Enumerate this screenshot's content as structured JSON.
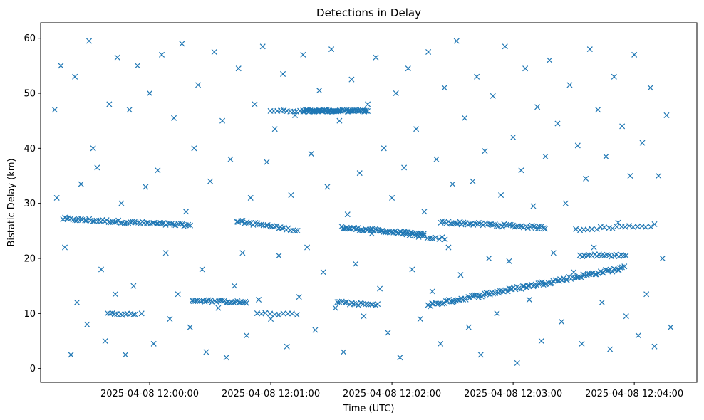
{
  "chart_data": {
    "type": "scatter",
    "title": "Detections in Delay",
    "xlabel": "Time (UTC)",
    "ylabel": "Bistatic Delay (km)",
    "x_unit": "time (UTC) on 2025-04-08",
    "x_ticks": [
      {
        "time": "11:59:57",
        "label": "2025-04-08 12:00:00"
      },
      {
        "time": "12:00:57",
        "label": "2025-04-08 12:01:00"
      },
      {
        "time": "12:01:57",
        "label": "2025-04-08 12:02:00"
      },
      {
        "time": "12:02:57",
        "label": "2025-04-08 12:03:00"
      },
      {
        "time": "12:03:57",
        "label": "2025-04-08 12:04:00"
      }
    ],
    "xlim": [
      "11:59:03",
      "12:04:28"
    ],
    "y_ticks": [
      0,
      10,
      20,
      30,
      40,
      50,
      60
    ],
    "ylim": [
      -2.5,
      62.8
    ],
    "marker": "x",
    "color": "#1f77b4",
    "grid": false,
    "series": [
      {
        "points": [
          [
            "11:59:10",
            47.0
          ],
          [
            "11:59:11",
            31.0
          ],
          [
            "11:59:13",
            55.0
          ],
          [
            "11:59:15",
            22.0
          ],
          [
            "11:59:18",
            2.5
          ],
          [
            "11:59:20",
            53.0
          ],
          [
            "11:59:21",
            12.0
          ],
          [
            "11:59:23",
            33.5
          ],
          [
            "11:59:26",
            8.0
          ],
          [
            "11:59:27",
            59.5
          ],
          [
            "11:59:29",
            40.0
          ],
          [
            "11:59:31",
            36.5
          ],
          [
            "11:59:33",
            18.0
          ],
          [
            "11:59:35",
            5.0
          ],
          [
            "11:59:37",
            48.0
          ],
          [
            "11:59:40",
            13.5
          ],
          [
            "11:59:41",
            56.5
          ],
          [
            "11:59:43",
            30.0
          ],
          [
            "11:59:45",
            2.5
          ],
          [
            "11:59:47",
            47.0
          ],
          [
            "11:59:49",
            15.0
          ],
          [
            "11:59:51",
            55.0
          ],
          [
            "11:59:53",
            10.0
          ],
          [
            "11:59:55",
            33.0
          ],
          [
            "11:59:57",
            50.0
          ],
          [
            "11:59:59",
            4.5
          ],
          [
            "12:00:01",
            36.0
          ],
          [
            "12:00:03",
            57.0
          ],
          [
            "12:00:05",
            21.0
          ],
          [
            "12:00:07",
            9.0
          ],
          [
            "12:00:09",
            45.5
          ],
          [
            "12:00:11",
            13.5
          ],
          [
            "12:00:13",
            59.0
          ],
          [
            "12:00:15",
            28.5
          ],
          [
            "12:00:17",
            7.5
          ],
          [
            "12:00:19",
            40.0
          ],
          [
            "12:00:21",
            51.5
          ],
          [
            "12:00:23",
            18.0
          ],
          [
            "12:00:25",
            3.0
          ],
          [
            "12:00:27",
            34.0
          ],
          [
            "12:00:29",
            57.5
          ],
          [
            "12:00:31",
            11.0
          ],
          [
            "12:00:33",
            45.0
          ],
          [
            "12:00:35",
            2.0
          ],
          [
            "12:00:37",
            38.0
          ],
          [
            "12:00:39",
            15.0
          ],
          [
            "12:00:41",
            54.5
          ],
          [
            "12:00:43",
            21.0
          ],
          [
            "12:00:45",
            6.0
          ],
          [
            "12:00:47",
            31.0
          ],
          [
            "12:00:49",
            48.0
          ],
          [
            "12:00:51",
            12.5
          ],
          [
            "12:00:53",
            58.5
          ],
          [
            "12:00:55",
            37.5
          ],
          [
            "12:00:57",
            9.0
          ],
          [
            "12:00:59",
            43.5
          ],
          [
            "12:01:01",
            20.5
          ],
          [
            "12:01:03",
            53.5
          ],
          [
            "12:01:05",
            4.0
          ],
          [
            "12:01:07",
            31.5
          ],
          [
            "12:01:09",
            46.0
          ],
          [
            "12:01:11",
            13.0
          ],
          [
            "12:01:13",
            57.0
          ],
          [
            "12:01:15",
            22.0
          ],
          [
            "12:01:17",
            39.0
          ],
          [
            "12:01:19",
            7.0
          ],
          [
            "12:01:21",
            50.5
          ],
          [
            "12:01:23",
            17.5
          ],
          [
            "12:01:25",
            33.0
          ],
          [
            "12:01:27",
            58.0
          ],
          [
            "12:01:29",
            11.0
          ],
          [
            "12:01:31",
            45.0
          ],
          [
            "12:01:33",
            3.0
          ],
          [
            "12:01:35",
            28.0
          ],
          [
            "12:01:37",
            52.5
          ],
          [
            "12:01:39",
            19.0
          ],
          [
            "12:01:41",
            35.5
          ],
          [
            "12:01:43",
            9.5
          ],
          [
            "12:01:45",
            48.0
          ],
          [
            "12:01:47",
            24.5
          ],
          [
            "12:01:49",
            56.5
          ],
          [
            "12:01:51",
            14.5
          ],
          [
            "12:01:53",
            40.0
          ],
          [
            "12:01:55",
            6.5
          ],
          [
            "12:01:57",
            31.0
          ],
          [
            "12:01:59",
            50.0
          ],
          [
            "12:02:01",
            2.0
          ],
          [
            "12:02:03",
            36.5
          ],
          [
            "12:02:05",
            54.5
          ],
          [
            "12:02:07",
            18.0
          ],
          [
            "12:02:09",
            43.5
          ],
          [
            "12:02:11",
            9.0
          ],
          [
            "12:02:13",
            28.5
          ],
          [
            "12:02:15",
            57.5
          ],
          [
            "12:02:17",
            14.0
          ],
          [
            "12:02:19",
            38.0
          ],
          [
            "12:02:21",
            4.5
          ],
          [
            "12:02:23",
            51.0
          ],
          [
            "12:02:25",
            22.0
          ],
          [
            "12:02:27",
            33.5
          ],
          [
            "12:02:29",
            59.5
          ],
          [
            "12:02:31",
            17.0
          ],
          [
            "12:02:33",
            45.5
          ],
          [
            "12:02:35",
            7.5
          ],
          [
            "12:02:37",
            34.0
          ],
          [
            "12:02:39",
            53.0
          ],
          [
            "12:02:41",
            2.5
          ],
          [
            "12:02:43",
            39.5
          ],
          [
            "12:02:45",
            20.0
          ],
          [
            "12:02:47",
            49.5
          ],
          [
            "12:02:49",
            10.0
          ],
          [
            "12:02:51",
            31.5
          ],
          [
            "12:02:53",
            58.5
          ],
          [
            "12:02:55",
            19.5
          ],
          [
            "12:02:57",
            42.0
          ],
          [
            "12:02:59",
            1.0
          ],
          [
            "12:03:01",
            36.0
          ],
          [
            "12:03:03",
            54.5
          ],
          [
            "12:03:05",
            12.5
          ],
          [
            "12:03:07",
            29.5
          ],
          [
            "12:03:09",
            47.5
          ],
          [
            "12:03:11",
            5.0
          ],
          [
            "12:03:13",
            38.5
          ],
          [
            "12:03:15",
            56.0
          ],
          [
            "12:03:17",
            21.0
          ],
          [
            "12:03:19",
            44.5
          ],
          [
            "12:03:21",
            8.5
          ],
          [
            "12:03:23",
            30.0
          ],
          [
            "12:03:25",
            51.5
          ],
          [
            "12:03:27",
            17.5
          ],
          [
            "12:03:29",
            40.5
          ],
          [
            "12:03:31",
            4.5
          ],
          [
            "12:03:33",
            34.5
          ],
          [
            "12:03:35",
            58.0
          ],
          [
            "12:03:37",
            22.0
          ],
          [
            "12:03:39",
            47.0
          ],
          [
            "12:03:41",
            12.0
          ],
          [
            "12:03:43",
            38.5
          ],
          [
            "12:03:45",
            3.5
          ],
          [
            "12:03:47",
            53.0
          ],
          [
            "12:03:49",
            26.5
          ],
          [
            "12:03:51",
            44.0
          ],
          [
            "12:03:53",
            9.5
          ],
          [
            "12:03:55",
            35.0
          ],
          [
            "12:03:57",
            57.0
          ],
          [
            "12:03:59",
            6.0
          ],
          [
            "12:04:01",
            41.0
          ],
          [
            "12:04:03",
            13.5
          ],
          [
            "12:04:05",
            51.0
          ],
          [
            "12:04:07",
            4.0
          ],
          [
            "12:04:09",
            35.0
          ],
          [
            "12:04:11",
            20.0
          ],
          [
            "12:04:13",
            46.0
          ],
          [
            "12:04:15",
            7.5
          ]
        ]
      }
    ],
    "tracks": [
      {
        "start": "11:59:14",
        "end": "12:00:17",
        "y_start": 27.2,
        "y_end": 26.0,
        "count": 65,
        "spread": 0.25
      },
      {
        "start": "12:01:32",
        "end": "12:02:13",
        "y_start": 25.6,
        "y_end": 24.3,
        "count": 60,
        "spread": 0.25
      },
      {
        "start": "12:02:21",
        "end": "12:03:13",
        "y_start": 26.6,
        "y_end": 25.6,
        "count": 55,
        "spread": 0.25
      },
      {
        "start": "12:03:28",
        "end": "12:04:07",
        "y_start": 25.3,
        "y_end": 26.0,
        "count": 20,
        "spread": 0.25
      },
      {
        "start": "12:00:40",
        "end": "12:01:10",
        "y_start": 26.8,
        "y_end": 25.1,
        "count": 30,
        "spread": 0.25
      },
      {
        "start": "12:00:57",
        "end": "12:01:27",
        "y_start": 46.8,
        "y_end": 46.8,
        "count": 20,
        "spread": 0.15
      },
      {
        "start": "12:01:13",
        "end": "12:01:45",
        "y_start": 46.8,
        "y_end": 46.8,
        "count": 70,
        "spread": 0.15
      },
      {
        "start": "12:02:15",
        "end": "12:03:52",
        "y_start": 11.5,
        "y_end": 18.3,
        "count": 115,
        "spread": 0.3
      },
      {
        "start": "12:00:18",
        "end": "12:00:45",
        "y_start": 12.4,
        "y_end": 12.0,
        "count": 30,
        "spread": 0.2
      },
      {
        "start": "12:01:30",
        "end": "12:01:50",
        "y_start": 12.0,
        "y_end": 11.5,
        "count": 18,
        "spread": 0.25
      },
      {
        "start": "12:03:30",
        "end": "12:03:53",
        "y_start": 20.6,
        "y_end": 20.5,
        "count": 20,
        "spread": 0.25
      },
      {
        "start": "11:59:36",
        "end": "11:59:50",
        "y_start": 10.0,
        "y_end": 9.8,
        "count": 12,
        "spread": 0.2
      },
      {
        "start": "12:00:50",
        "end": "12:01:10",
        "y_start": 10.0,
        "y_end": 9.8,
        "count": 10,
        "spread": 0.2
      },
      {
        "start": "12:02:03",
        "end": "12:02:23",
        "y_start": 24.5,
        "y_end": 23.5,
        "count": 15,
        "spread": 0.3
      }
    ]
  }
}
